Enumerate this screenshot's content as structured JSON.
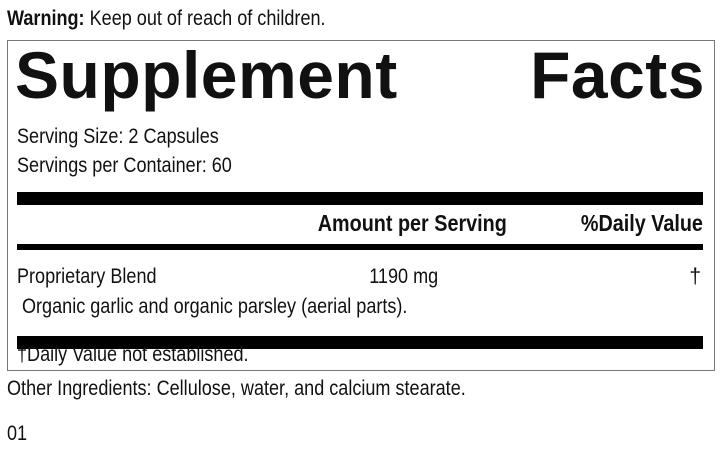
{
  "warning": {
    "label": "Warning:",
    "text": "Keep out of reach of children."
  },
  "panel": {
    "title_words": [
      "Supplement",
      "Facts"
    ],
    "serving_size": "Serving Size: 2 Capsules",
    "servings_per_container": "Servings per Container: 60",
    "header": {
      "amount": "Amount per Serving",
      "daily_value": "%Daily Value"
    },
    "rows": [
      {
        "name": "Proprietary Blend",
        "amount": "1190 mg",
        "dv": "†",
        "detail": "Organic garlic and organic parsley (aerial parts)."
      }
    ],
    "footnote": "†Daily Value not established."
  },
  "other_ingredients": "Other Ingredients: Cellulose, water, and calcium stearate.",
  "code": "01"
}
